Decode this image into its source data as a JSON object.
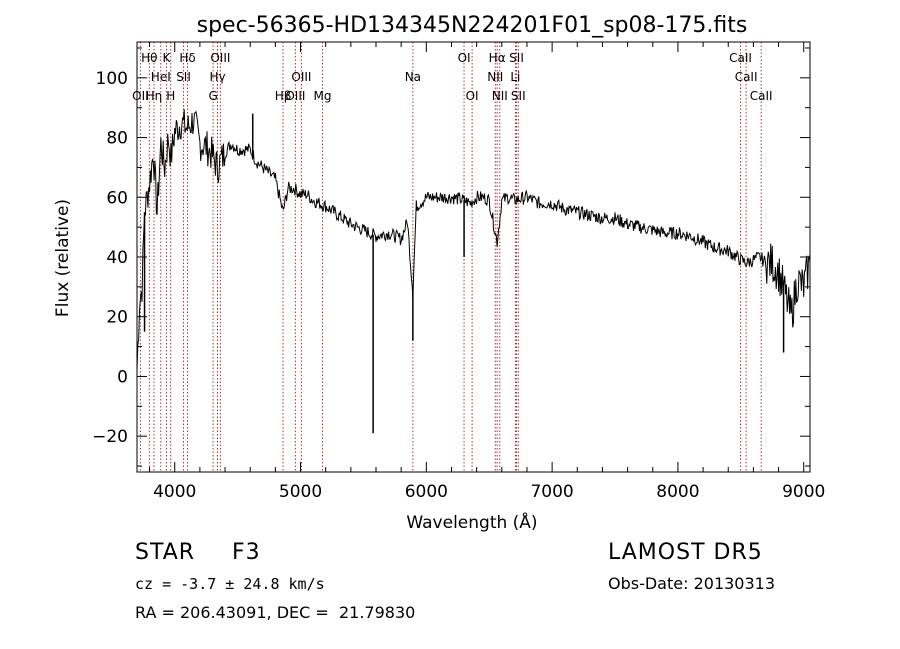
{
  "chart_data": {
    "type": "line",
    "title": "spec-56365-HD134345N224201F01_sp08-175.fits",
    "xlabel": "Wavelength (Å)",
    "ylabel": "Flux (relative)",
    "xlim": [
      3700,
      9050
    ],
    "ylim": [
      -32,
      112
    ],
    "xticks": [
      4000,
      5000,
      6000,
      7000,
      8000,
      9000
    ],
    "yticks": [
      -20,
      0,
      20,
      40,
      60,
      80,
      100
    ],
    "grid": false,
    "colors": {
      "spectrum": "#000000",
      "line_markers": "#b03030",
      "axes": "#000000"
    },
    "series": [
      {
        "x": [
          3700,
          3720,
          3740,
          3760,
          3780,
          3800,
          3830,
          3860,
          3890,
          3920,
          3950,
          3970,
          4000,
          4050,
          4100,
          4150,
          4200,
          4250,
          4300,
          4340,
          4400,
          4450,
          4500,
          4550,
          4600,
          4650,
          4700,
          4750,
          4800,
          4861,
          4900,
          4950,
          5000,
          5050,
          5100,
          5200,
          5300,
          5400,
          5500,
          5600,
          5700,
          5800,
          5850,
          5893,
          5920,
          5950,
          6000,
          6050,
          6100,
          6200,
          6300,
          6350,
          6400,
          6450,
          6500,
          6563,
          6600,
          6650,
          6700,
          6800,
          6900,
          7000,
          7100,
          7200,
          7300,
          7400,
          7500,
          7600,
          7700,
          7800,
          7900,
          8000,
          8100,
          8200,
          8300,
          8400,
          8500,
          8550,
          8600,
          8650,
          8700,
          8750,
          8800,
          8850,
          8900,
          8950,
          9000,
          9050
        ],
        "y": [
          2,
          25,
          30,
          55,
          60,
          65,
          75,
          55,
          78,
          70,
          80,
          73,
          82,
          85,
          83,
          86,
          78,
          77,
          74,
          70,
          75,
          78,
          76,
          76,
          76,
          72,
          70,
          68,
          66,
          55,
          63,
          63,
          61,
          61,
          59,
          57,
          54,
          51,
          49,
          47,
          48,
          46,
          52,
          28,
          57,
          58,
          60,
          60,
          60,
          60,
          59,
          58,
          60,
          60,
          59,
          45,
          59,
          60,
          59,
          60,
          58,
          58,
          56,
          55,
          54,
          53,
          53,
          51,
          50,
          49,
          48,
          48,
          47,
          45,
          43,
          42,
          39,
          38,
          39,
          40,
          38,
          38,
          35,
          28,
          20,
          32,
          30,
          38
        ]
      }
    ],
    "line_markers": [
      {
        "label": "Hθ",
        "x": 3798
      },
      {
        "label": "OII",
        "x": 3727
      },
      {
        "label": "Hη",
        "x": 3835
      },
      {
        "label": "HeI",
        "x": 3889
      },
      {
        "label": "K",
        "x": 3934
      },
      {
        "label": "SII",
        "x": 4070
      },
      {
        "label": "H",
        "x": 3968
      },
      {
        "label": "Hδ",
        "x": 4102
      },
      {
        "label": "OIII",
        "x": 4363
      },
      {
        "label": "Hγ",
        "x": 4340
      },
      {
        "label": "G",
        "x": 4305
      },
      {
        "label": "Hβ",
        "x": 4861
      },
      {
        "label": "OIII",
        "x": 5007
      },
      {
        "label": "OIII",
        "x": 4959
      },
      {
        "label": "Mg",
        "x": 5175
      },
      {
        "label": "Na",
        "x": 5893
      },
      {
        "label": "OI",
        "x": 6300
      },
      {
        "label": "OI",
        "x": 6364
      },
      {
        "label": "Hα",
        "x": 6563
      },
      {
        "label": "NII",
        "x": 6548
      },
      {
        "label": "NII",
        "x": 6584
      },
      {
        "label": "SII",
        "x": 6717
      },
      {
        "label": "Li",
        "x": 6708
      },
      {
        "label": "SII",
        "x": 6731
      },
      {
        "label": "CaII",
        "x": 8498
      },
      {
        "label": "CaII",
        "x": 8542
      },
      {
        "label": "CaII",
        "x": 8662
      }
    ],
    "spikes": [
      {
        "x": 5577,
        "y": -19
      },
      {
        "x": 4620,
        "y": 88
      },
      {
        "x": 5893,
        "y": 12
      },
      {
        "x": 6300,
        "y": 40
      },
      {
        "x": 3760,
        "y": 15
      },
      {
        "x": 8840,
        "y": 8
      }
    ]
  },
  "info": {
    "object_type": "STAR",
    "subclass": "F3",
    "survey": "LAMOST DR5",
    "redshift": "cz = -3.7 ± 24.8 km/s",
    "obs_date": "Obs-Date: 20130313",
    "coords": "RA = 206.43091, DEC =  21.79830"
  }
}
